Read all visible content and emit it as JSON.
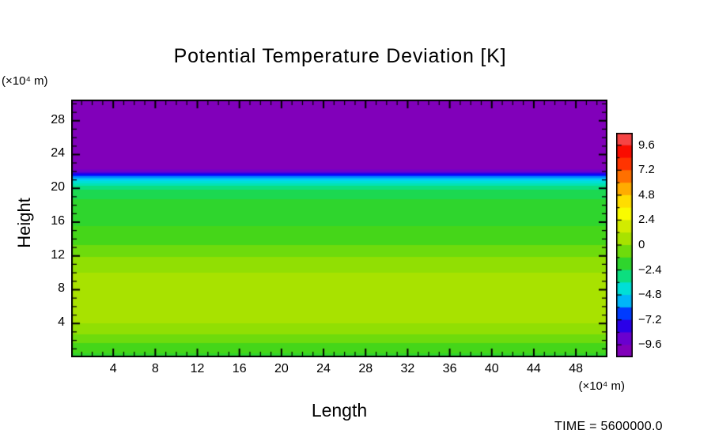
{
  "chart_data": {
    "type": "heatmap",
    "title": "Potential Temperature Deviation [K]",
    "xlabel": "Length",
    "ylabel": "Height",
    "x_unit": "(×10⁴ m)",
    "y_unit": "(×10⁴ m)",
    "xlim": [
      0,
      51
    ],
    "ylim": [
      0,
      30.5
    ],
    "x_ticks": [
      4,
      8,
      12,
      16,
      20,
      24,
      28,
      32,
      36,
      40,
      44,
      48
    ],
    "y_ticks": [
      4,
      8,
      12,
      16,
      20,
      24,
      28
    ],
    "x_minor_step": 1,
    "y_minor_step": 1,
    "grid": false,
    "field_description": "Horizontally uniform filled-contour field; value depends on height only. Purple layer above height ~22, sharp blue/cyan transition near 21, green mid-levels, yellow-green maximum near heights 4-11.",
    "profile_height_value": [
      [
        0,
        -1.7
      ],
      [
        1.5,
        -1.0
      ],
      [
        3,
        -0.1
      ],
      [
        4,
        0.3
      ],
      [
        6,
        0.5
      ],
      [
        9,
        0.5
      ],
      [
        11,
        0.1
      ],
      [
        12.5,
        -0.6
      ],
      [
        14,
        -1.2
      ],
      [
        16,
        -1.6
      ],
      [
        18.5,
        -2.0
      ],
      [
        19.8,
        -2.6
      ],
      [
        20.4,
        -3.4
      ],
      [
        20.9,
        -4.5
      ],
      [
        21.3,
        -5.8
      ],
      [
        21.7,
        -7.6
      ],
      [
        22.0,
        -9.0
      ],
      [
        22.4,
        -10.3
      ],
      [
        30.5,
        -10.5
      ]
    ],
    "contour_interval": 0.6,
    "colormap": [
      [
        -10.8,
        "#8c00b0"
      ],
      [
        -9.0,
        "#6a00cf"
      ],
      [
        -7.8,
        "#2a00e8"
      ],
      [
        -7.0,
        "#0008ff"
      ],
      [
        -5.8,
        "#00a0ff"
      ],
      [
        -4.8,
        "#00d8f0"
      ],
      [
        -3.8,
        "#00e4c4"
      ],
      [
        -2.8,
        "#0fdc6e"
      ],
      [
        -2.0,
        "#28d434"
      ],
      [
        -1.2,
        "#45d619"
      ],
      [
        -0.4,
        "#7cdc08"
      ],
      [
        0.2,
        "#9ce000"
      ],
      [
        1.0,
        "#b4e400"
      ],
      [
        2.4,
        "#e8f000"
      ],
      [
        3.2,
        "#ffff00"
      ],
      [
        4.8,
        "#ffc800"
      ],
      [
        6.0,
        "#ff9000"
      ],
      [
        7.2,
        "#ff5000"
      ],
      [
        8.4,
        "#ff1800"
      ],
      [
        9.6,
        "#f40000"
      ],
      [
        10.8,
        "#f88888"
      ]
    ],
    "colorbar": {
      "min": -10.8,
      "max": 10.8,
      "segments": 18,
      "labels": [
        {
          "text": "9.6",
          "value": 9.6
        },
        {
          "text": "7.2",
          "value": 7.2
        },
        {
          "text": "4.8",
          "value": 4.8
        },
        {
          "text": "2.4",
          "value": 2.4
        },
        {
          "text": "0",
          "value": 0
        },
        {
          "text": "−2.4",
          "value": -2.4
        },
        {
          "text": "−4.8",
          "value": -4.8
        },
        {
          "text": "−7.2",
          "value": -7.2
        },
        {
          "text": "−9.6",
          "value": -9.6
        }
      ]
    },
    "time_label": "TIME = 5600000.0"
  }
}
